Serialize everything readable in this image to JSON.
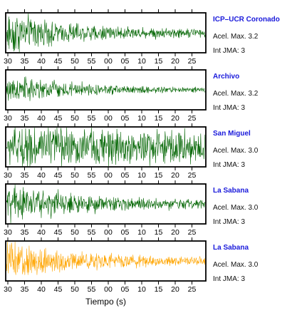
{
  "chart_data": {
    "type": "line",
    "xlabel": "Tiempo (s)",
    "x_tick_labels": [
      "30",
      "35",
      "40",
      "45",
      "50",
      "55",
      "00",
      "05",
      "10",
      "15",
      "20",
      "25"
    ],
    "panels": [
      {
        "station": "ICP–UCR Coronado",
        "acel": "Acel. Max. 3.2",
        "jma": "Int JMA: 3",
        "color": "#006400",
        "amplitude_profile": "strong-early-decay"
      },
      {
        "station": "Archivo",
        "acel": "Acel. Max. 3.2",
        "jma": "Int JMA: 3",
        "color": "#006400",
        "amplitude_profile": "moderate-early-decay"
      },
      {
        "station": "San Miguel",
        "acel": "Acel. Max. 3.0",
        "jma": "Int JMA: 3",
        "color": "#006400",
        "amplitude_profile": "sustained"
      },
      {
        "station": "La Sabana",
        "acel": "Acel. Max. 3.0",
        "jma": "Int JMA: 3",
        "color": "#006400",
        "amplitude_profile": "strong-early-decay"
      },
      {
        "station": "La Sabana",
        "acel": "Acel. Max. 3.0",
        "jma": "Int JMA: 3",
        "color": "#ffa500",
        "amplitude_profile": "strong-early-decay"
      }
    ]
  }
}
